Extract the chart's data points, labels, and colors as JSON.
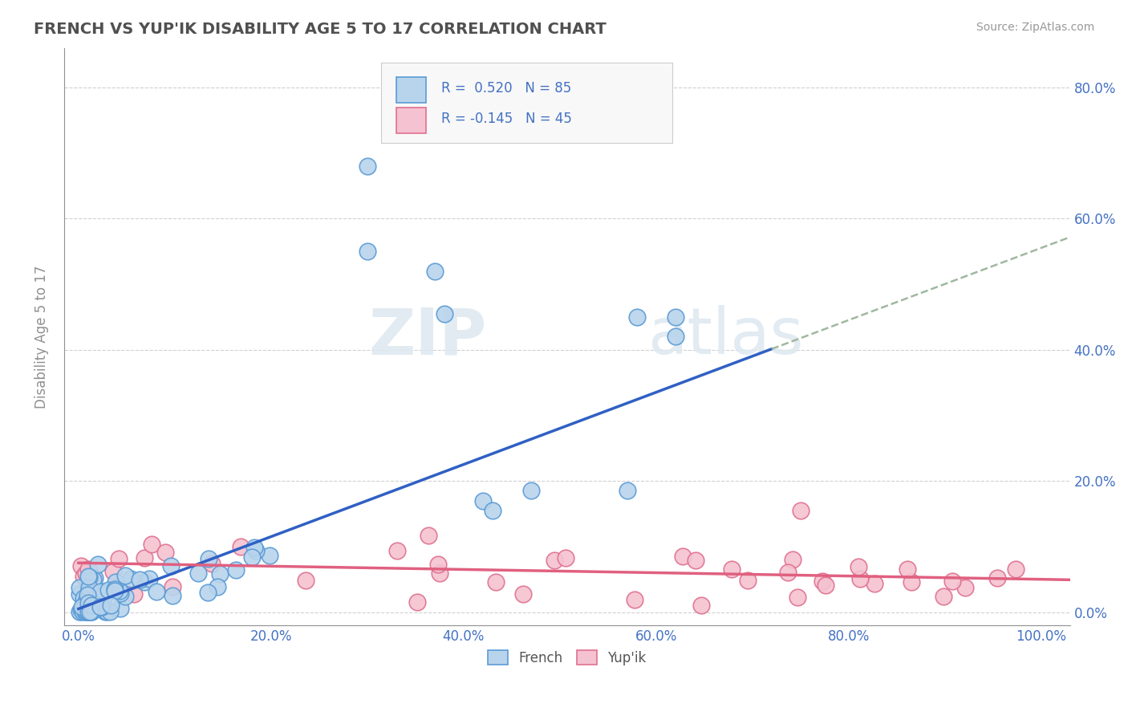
{
  "title": "FRENCH VS YUP'IK DISABILITY AGE 5 TO 17 CORRELATION CHART",
  "source": "Source: ZipAtlas.com",
  "ylabel": "Disability Age 5 to 17",
  "x_ticks": [
    0.0,
    0.2,
    0.4,
    0.6,
    0.8,
    1.0
  ],
  "x_tick_labels": [
    "0.0%",
    "20.0%",
    "40.0%",
    "60.0%",
    "80.0%",
    "100.0%"
  ],
  "y_ticks": [
    0.0,
    0.2,
    0.4,
    0.6,
    0.8
  ],
  "y_tick_labels": [
    "0.0%",
    "20.0%",
    "40.0%",
    "60.0%",
    "80.0%"
  ],
  "xlim": [
    -0.015,
    1.03
  ],
  "ylim": [
    -0.02,
    0.86
  ],
  "french_color": "#b8d4ec",
  "french_edge_color": "#5b9bd5",
  "yupik_color": "#f4c2d0",
  "yupik_edge_color": "#e07090",
  "french_line_color": "#2f60c4",
  "yupik_line_color": "#e06080",
  "dashed_line_color": "#a0b8a0",
  "title_color": "#505050",
  "axis_color": "#909090",
  "tick_color": "#4472C4",
  "grid_color": "#d0d0d0",
  "r_french": 0.52,
  "n_french": 85,
  "r_yupik": -0.145,
  "n_yupik": 45,
  "watermark_zip": "ZIP",
  "watermark_atlas": "atlas",
  "background_color": "#ffffff",
  "legend_box_color": "#f8f8f8",
  "french_slope": 0.55,
  "french_intercept": 0.005,
  "yupik_slope": -0.025,
  "yupik_intercept": 0.075
}
